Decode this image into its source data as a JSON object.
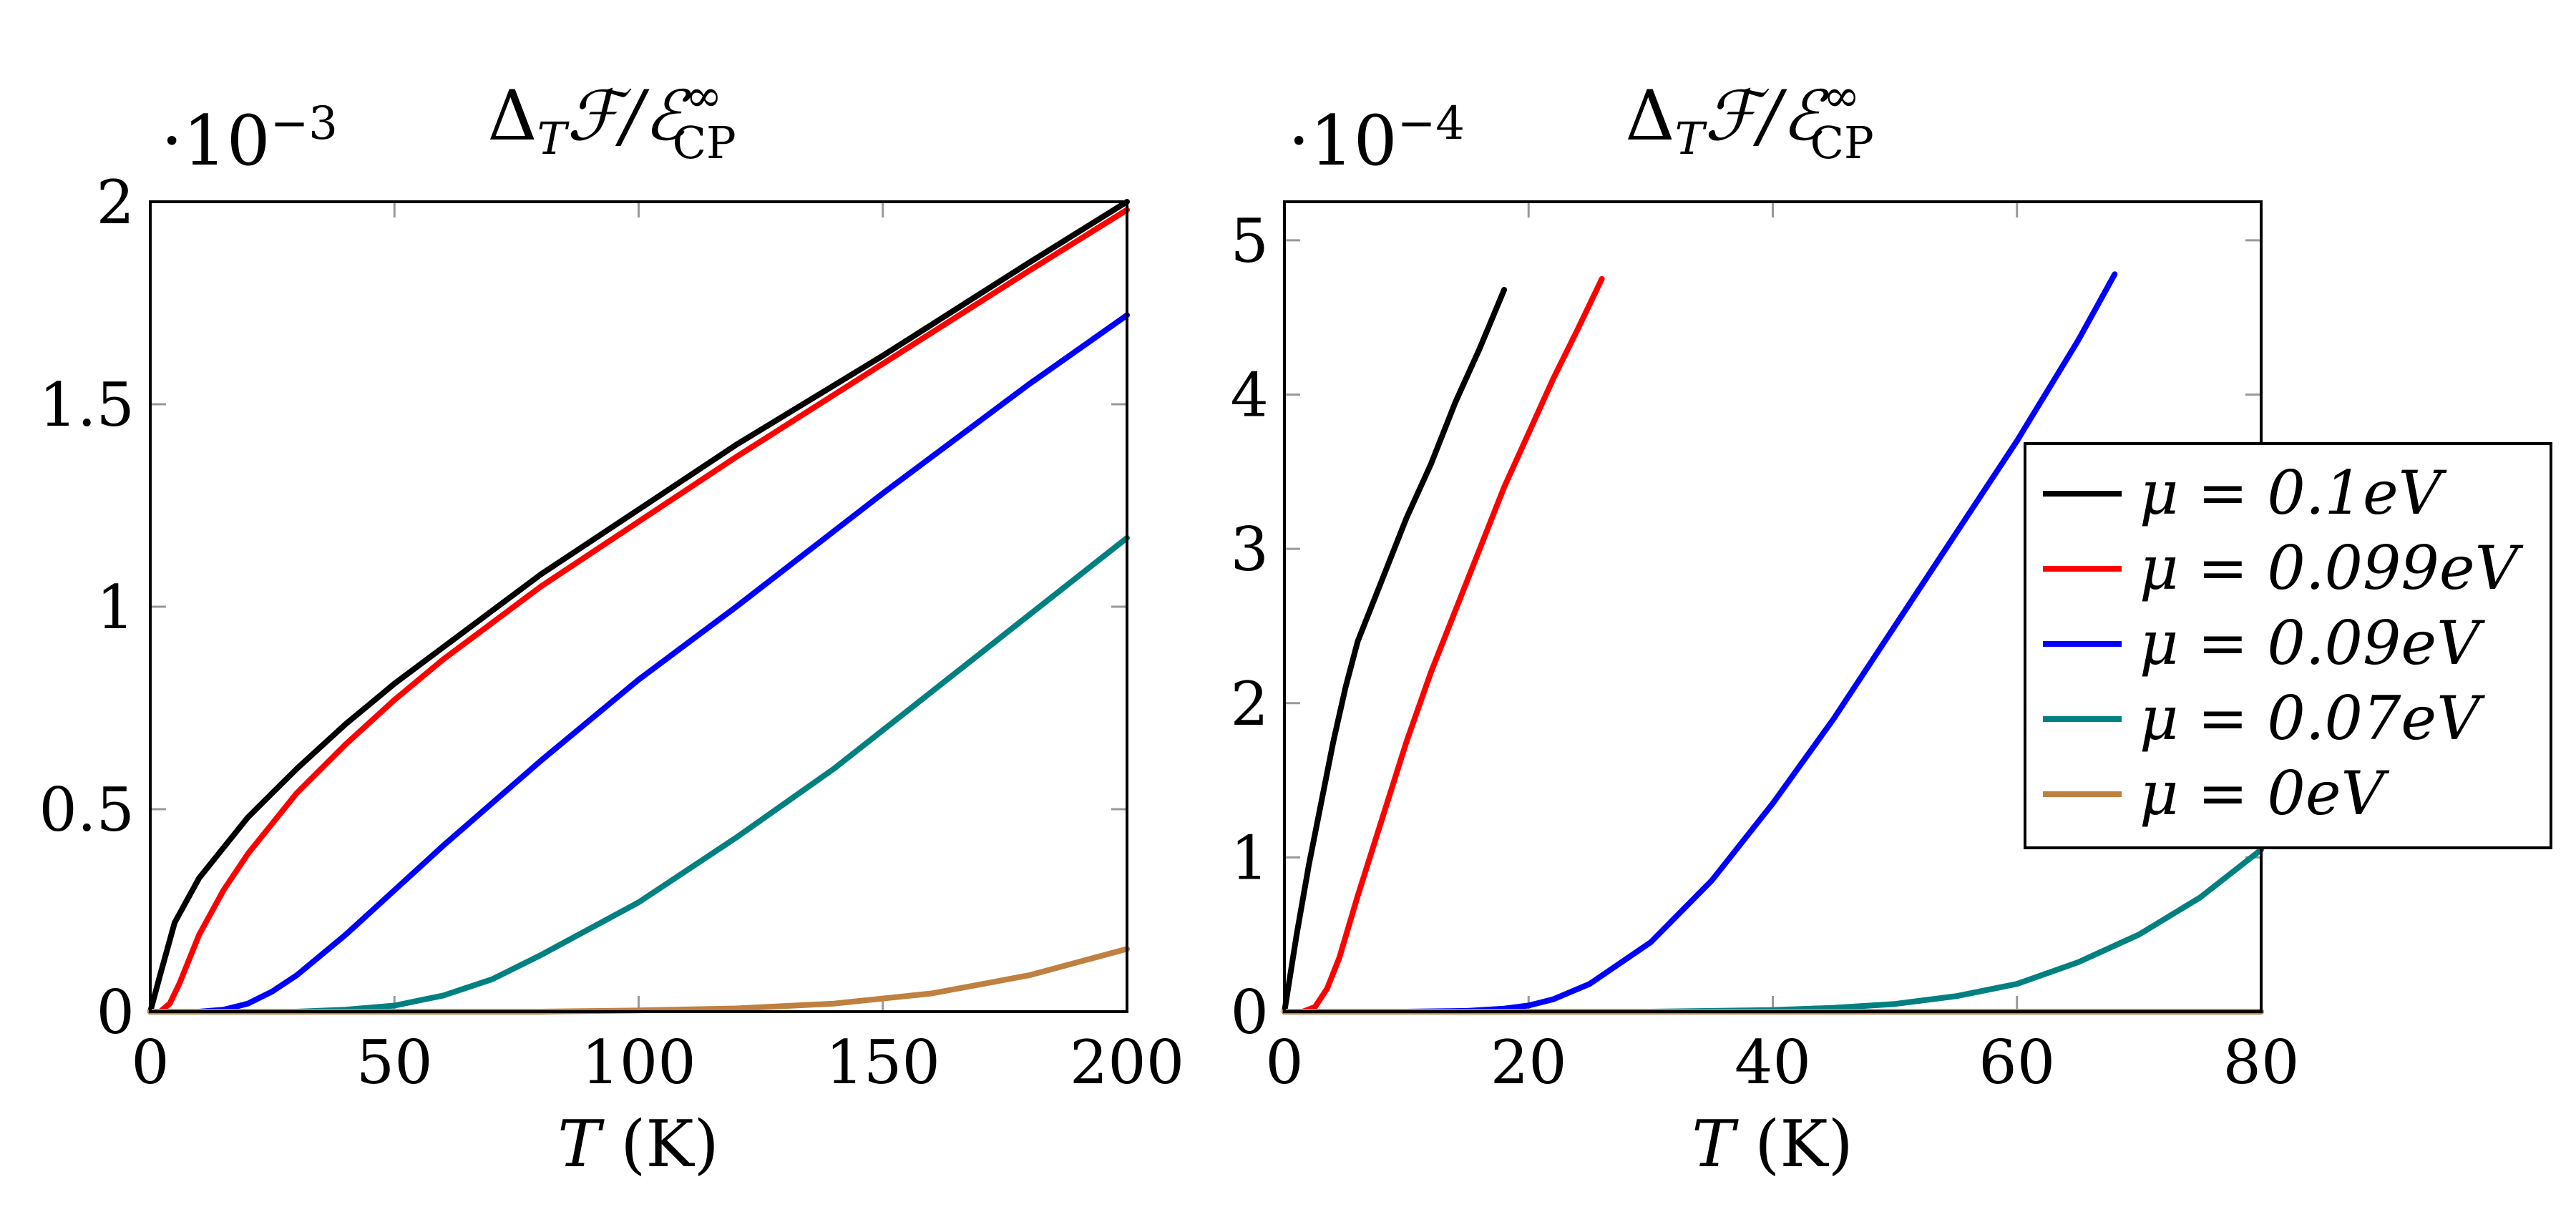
{
  "chart_data": [
    {
      "type": "line",
      "title": "ΔTℱ/ℰ∞CP",
      "title_parts": {
        "delta": "Δ",
        "sub_t": "T",
        "f": "ℱ/ℰ",
        "sup": "∞",
        "sub": "CP"
      },
      "scale_label": "·10",
      "scale_exp": "−3",
      "xlabel": "T (K)",
      "xlabel_parts": {
        "var": "T",
        "unit": "(K)"
      },
      "xlim": [
        0,
        200
      ],
      "ylim": [
        0,
        2
      ],
      "xticks": [
        0,
        50,
        100,
        150,
        200
      ],
      "xtick_labels": [
        "0",
        "50",
        "100",
        "150",
        "200"
      ],
      "yticks": [
        0,
        0.5,
        1,
        1.5,
        2
      ],
      "ytick_labels": [
        "0",
        "0.5",
        "1",
        "1.5",
        "2"
      ],
      "series": [
        {
          "name": "μ = 0.1eV",
          "color": "#000000",
          "x": [
            0,
            2,
            5,
            10,
            20,
            30,
            40,
            50,
            60,
            80,
            100,
            120,
            150,
            180,
            200
          ],
          "y": [
            0,
            0.09,
            0.22,
            0.33,
            0.48,
            0.6,
            0.71,
            0.81,
            0.9,
            1.08,
            1.24,
            1.4,
            1.62,
            1.85,
            2.0
          ]
        },
        {
          "name": "μ = 0.099eV",
          "color": "#ff0000",
          "x": [
            0,
            2,
            4,
            6,
            8,
            10,
            15,
            20,
            30,
            40,
            50,
            60,
            80,
            100,
            120,
            150,
            180,
            200
          ],
          "y": [
            0,
            0.0,
            0.02,
            0.07,
            0.13,
            0.19,
            0.3,
            0.39,
            0.54,
            0.66,
            0.77,
            0.87,
            1.05,
            1.21,
            1.37,
            1.6,
            1.83,
            1.98
          ]
        },
        {
          "name": "μ = 0.09eV",
          "color": "#0000ff",
          "x": [
            0,
            10,
            15,
            20,
            25,
            30,
            40,
            50,
            60,
            80,
            100,
            120,
            150,
            180,
            200
          ],
          "y": [
            0,
            0.0,
            0.005,
            0.02,
            0.05,
            0.09,
            0.19,
            0.3,
            0.41,
            0.62,
            0.82,
            1.0,
            1.28,
            1.55,
            1.72
          ]
        },
        {
          "name": "μ = 0.07eV",
          "color": "#008080",
          "x": [
            0,
            30,
            40,
            50,
            60,
            70,
            80,
            100,
            120,
            140,
            160,
            180,
            200
          ],
          "y": [
            0,
            0.0,
            0.005,
            0.015,
            0.04,
            0.08,
            0.14,
            0.27,
            0.43,
            0.6,
            0.79,
            0.98,
            1.17
          ]
        },
        {
          "name": "μ = 0eV",
          "color": "#bf8040",
          "x": [
            0,
            80,
            100,
            120,
            140,
            160,
            180,
            200
          ],
          "y": [
            0,
            0.0,
            0.003,
            0.008,
            0.02,
            0.045,
            0.09,
            0.155
          ]
        }
      ]
    },
    {
      "type": "line",
      "title": "ΔTℱ/ℰ∞CP",
      "title_parts": {
        "delta": "Δ",
        "sub_t": "T",
        "f": "ℱ/ℰ",
        "sup": "∞",
        "sub": "CP"
      },
      "scale_label": "·10",
      "scale_exp": "−4",
      "xlabel": "T (K)",
      "xlabel_parts": {
        "var": "T",
        "unit": "(K)"
      },
      "xlim": [
        0,
        80
      ],
      "ylim": [
        0,
        5.25
      ],
      "xticks": [
        0,
        20,
        40,
        60,
        80
      ],
      "xtick_labels": [
        "0",
        "20",
        "40",
        "60",
        "80"
      ],
      "yticks": [
        0,
        1,
        2,
        3,
        4,
        5
      ],
      "ytick_labels": [
        "0",
        "1",
        "2",
        "3",
        "4",
        "5"
      ],
      "legend": [
        "μ = 0.1eV",
        "μ = 0.099eV",
        "μ = 0.09eV",
        "μ = 0.07eV",
        "μ = 0eV"
      ],
      "legend_position": "right",
      "series": [
        {
          "name": "μ = 0.1eV",
          "color": "#000000",
          "x": [
            0,
            1,
            2,
            3,
            4,
            5,
            6,
            8,
            10,
            12,
            14,
            16,
            18
          ],
          "y": [
            0,
            0.5,
            0.95,
            1.35,
            1.75,
            2.1,
            2.4,
            2.8,
            3.2,
            3.55,
            3.95,
            4.3,
            4.68
          ]
        },
        {
          "name": "μ = 0.099eV",
          "color": "#ff0000",
          "x": [
            0,
            1.5,
            2.5,
            3.5,
            4.5,
            6,
            8,
            10,
            12,
            14,
            16,
            18,
            20,
            22,
            24,
            26
          ],
          "y": [
            0,
            0.0,
            0.03,
            0.15,
            0.35,
            0.75,
            1.25,
            1.75,
            2.2,
            2.6,
            3.0,
            3.4,
            3.75,
            4.1,
            4.42,
            4.75
          ]
        },
        {
          "name": "μ = 0.09eV",
          "color": "#0000ff",
          "x": [
            0,
            10,
            15,
            18,
            20,
            22,
            25,
            30,
            35,
            40,
            45,
            50,
            55,
            60,
            65,
            68
          ],
          "y": [
            0,
            0.0,
            0.005,
            0.02,
            0.04,
            0.08,
            0.18,
            0.45,
            0.85,
            1.35,
            1.9,
            2.5,
            3.1,
            3.7,
            4.35,
            4.78
          ]
        },
        {
          "name": "μ = 0.07eV",
          "color": "#008080",
          "x": [
            0,
            30,
            40,
            45,
            50,
            55,
            60,
            65,
            70,
            75,
            80
          ],
          "y": [
            0,
            0.0,
            0.01,
            0.025,
            0.05,
            0.1,
            0.18,
            0.32,
            0.5,
            0.74,
            1.05
          ]
        },
        {
          "name": "μ = 0eV",
          "color": "#bf8040",
          "x": [
            0,
            80
          ],
          "y": [
            0,
            0.0
          ]
        }
      ]
    }
  ]
}
